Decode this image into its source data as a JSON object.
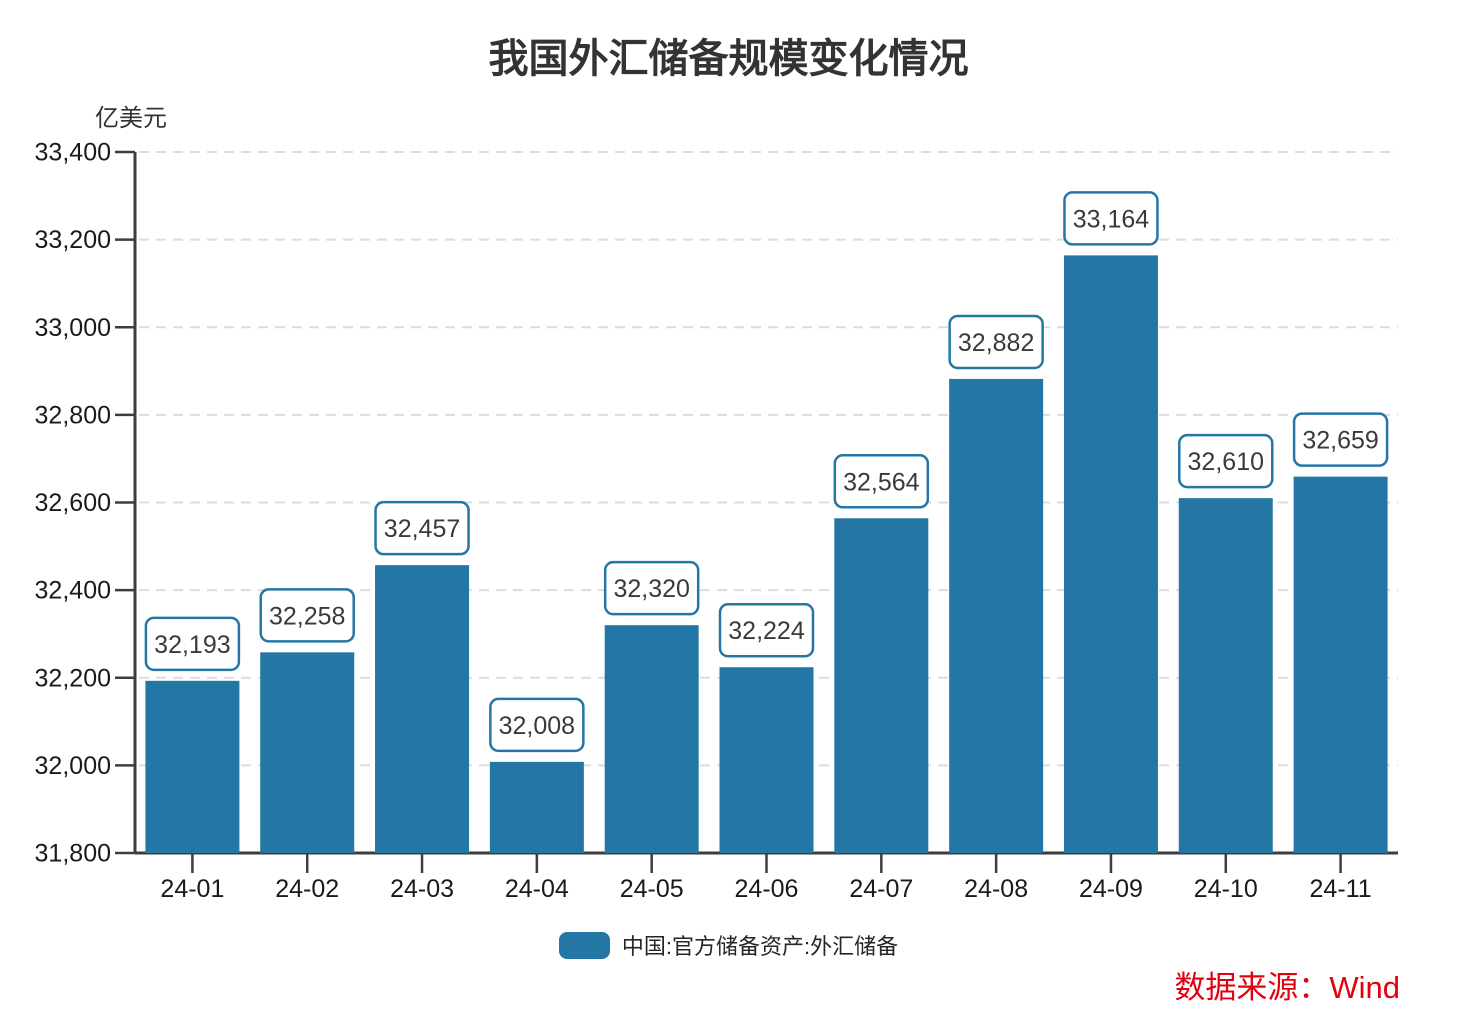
{
  "page": {
    "title": "我国外汇储备规模变化情况",
    "unit_label": "亿美元",
    "source_label": "数据来源：Wind"
  },
  "legend": {
    "label": "中国:官方储备资产:外汇储备"
  },
  "colors": {
    "bar": "#2477a4",
    "label_box_border": "#2477a4",
    "label_box_fill": "#ffffff",
    "axis": "#3d3d3d",
    "grid": "#dcdcdc",
    "title_text": "#333333",
    "tick_text": "#1a1a1a",
    "source_red": "#e3000f"
  },
  "chart_data": {
    "type": "bar",
    "title": "我国外汇储备规模变化情况",
    "ylabel": "亿美元",
    "xlabel": "",
    "categories": [
      "24-01",
      "24-02",
      "24-03",
      "24-04",
      "24-05",
      "24-06",
      "24-07",
      "24-08",
      "24-09",
      "24-10",
      "24-11"
    ],
    "series": [
      {
        "name": "中国:官方储备资产:外汇储备",
        "values": [
          32193,
          32258,
          32457,
          32008,
          32320,
          32224,
          32564,
          32882,
          33164,
          32610,
          32659
        ],
        "value_labels": [
          "32,193",
          "32,258",
          "32,457",
          "32,008",
          "32,320",
          "32,224",
          "32,564",
          "32,882",
          "33,164",
          "32,610",
          "32,659"
        ]
      }
    ],
    "ylim": [
      31800,
      33400
    ],
    "ytick_step": 200,
    "ytick_labels": [
      "31,800",
      "32,000",
      "32,200",
      "32,400",
      "32,600",
      "32,800",
      "33,000",
      "33,200",
      "33,400"
    ],
    "grid": "horizontal-dashed",
    "legend_position": "bottom-center",
    "data_labels": "boxed-above-bars"
  }
}
